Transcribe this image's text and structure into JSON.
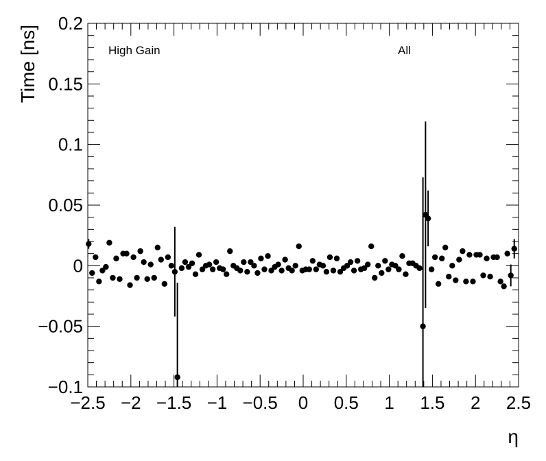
{
  "chart_data": {
    "type": "scatter",
    "xlabel": "η",
    "ylabel": "Time [ns]",
    "xlim": [
      -2.5,
      2.5
    ],
    "ylim": [
      -0.1,
      0.2
    ],
    "xticks": [
      -2.5,
      -2,
      -1.5,
      -1,
      -0.5,
      0,
      0.5,
      1,
      1.5,
      2,
      2.5
    ],
    "xtick_labels": [
      "−2.5",
      "−2",
      "−1.5",
      "−1",
      "−0.5",
      "0",
      "0.5",
      "1",
      "1.5",
      "2",
      "2.5"
    ],
    "yticks": [
      -0.1,
      -0.05,
      0,
      0.05,
      0.1,
      0.15,
      0.2
    ],
    "ytick_labels": [
      "−0.1",
      "−0.05",
      "0",
      "0.05",
      "0.1",
      "0.15",
      "0.2"
    ],
    "annotations": [
      "High Gain",
      "All"
    ],
    "grid": false,
    "marker_color": "#000000",
    "points": [
      {
        "x": -2.49,
        "y": 0.018,
        "err": 0.004
      },
      {
        "x": -2.45,
        "y": -0.006
      },
      {
        "x": -2.41,
        "y": 0.007
      },
      {
        "x": -2.37,
        "y": -0.013
      },
      {
        "x": -2.33,
        "y": -0.004
      },
      {
        "x": -2.29,
        "y": -0.001
      },
      {
        "x": -2.25,
        "y": 0.019
      },
      {
        "x": -2.21,
        "y": -0.01
      },
      {
        "x": -2.17,
        "y": 0.006
      },
      {
        "x": -2.13,
        "y": -0.011
      },
      {
        "x": -2.09,
        "y": 0.01
      },
      {
        "x": -2.05,
        "y": 0.01
      },
      {
        "x": -2.01,
        "y": -0.016
      },
      {
        "x": -1.97,
        "y": 0.007
      },
      {
        "x": -1.93,
        "y": -0.01
      },
      {
        "x": -1.89,
        "y": 0.012
      },
      {
        "x": -1.85,
        "y": 0.003
      },
      {
        "x": -1.81,
        "y": -0.011
      },
      {
        "x": -1.77,
        "y": 0.001
      },
      {
        "x": -1.73,
        "y": -0.01
      },
      {
        "x": -1.69,
        "y": 0.015
      },
      {
        "x": -1.65,
        "y": 0.005
      },
      {
        "x": -1.61,
        "y": -0.015
      },
      {
        "x": -1.57,
        "y": 0.007
      },
      {
        "x": -1.53,
        "y": 0.0
      },
      {
        "x": -1.49,
        "y": -0.005,
        "err": 0.037
      },
      {
        "x": -1.46,
        "y": -0.092,
        "err": 0.078
      },
      {
        "x": -1.41,
        "y": -0.002
      },
      {
        "x": -1.37,
        "y": 0.003
      },
      {
        "x": -1.33,
        "y": -0.001
      },
      {
        "x": -1.29,
        "y": 0.002
      },
      {
        "x": -1.25,
        "y": -0.007
      },
      {
        "x": -1.21,
        "y": 0.009
      },
      {
        "x": -1.17,
        "y": -0.003
      },
      {
        "x": -1.13,
        "y": 0.0
      },
      {
        "x": -1.09,
        "y": 0.001
      },
      {
        "x": -1.05,
        "y": -0.003
      },
      {
        "x": -1.01,
        "y": 0.003
      },
      {
        "x": -0.97,
        "y": -0.002
      },
      {
        "x": -0.93,
        "y": -0.003
      },
      {
        "x": -0.89,
        "y": -0.007
      },
      {
        "x": -0.85,
        "y": 0.012
      },
      {
        "x": -0.81,
        "y": 0.0
      },
      {
        "x": -0.77,
        "y": -0.002
      },
      {
        "x": -0.73,
        "y": -0.004
      },
      {
        "x": -0.69,
        "y": 0.003
      },
      {
        "x": -0.65,
        "y": -0.005
      },
      {
        "x": -0.61,
        "y": 0.003
      },
      {
        "x": -0.57,
        "y": 0.0
      },
      {
        "x": -0.53,
        "y": -0.006
      },
      {
        "x": -0.49,
        "y": 0.006
      },
      {
        "x": -0.45,
        "y": -0.003
      },
      {
        "x": -0.41,
        "y": 0.008
      },
      {
        "x": -0.37,
        "y": -0.004
      },
      {
        "x": -0.33,
        "y": -0.001
      },
      {
        "x": -0.29,
        "y": 0.001
      },
      {
        "x": -0.25,
        "y": -0.004
      },
      {
        "x": -0.21,
        "y": 0.005
      },
      {
        "x": -0.17,
        "y": -0.002
      },
      {
        "x": -0.13,
        "y": -0.004
      },
      {
        "x": -0.09,
        "y": 0.0
      },
      {
        "x": -0.05,
        "y": 0.016
      },
      {
        "x": -0.01,
        "y": -0.004
      },
      {
        "x": 0.03,
        "y": -0.003
      },
      {
        "x": 0.07,
        "y": -0.003
      },
      {
        "x": 0.11,
        "y": 0.004
      },
      {
        "x": 0.15,
        "y": -0.003
      },
      {
        "x": 0.19,
        "y": 0.001
      },
      {
        "x": 0.23,
        "y": 0.0
      },
      {
        "x": 0.27,
        "y": -0.005
      },
      {
        "x": 0.31,
        "y": 0.007
      },
      {
        "x": 0.35,
        "y": -0.004
      },
      {
        "x": 0.39,
        "y": 0.006
      },
      {
        "x": 0.43,
        "y": -0.005
      },
      {
        "x": 0.47,
        "y": -0.002
      },
      {
        "x": 0.51,
        "y": 0.0
      },
      {
        "x": 0.55,
        "y": 0.003
      },
      {
        "x": 0.59,
        "y": -0.004
      },
      {
        "x": 0.63,
        "y": 0.004
      },
      {
        "x": 0.67,
        "y": -0.003
      },
      {
        "x": 0.71,
        "y": -0.002
      },
      {
        "x": 0.75,
        "y": 0.001
      },
      {
        "x": 0.79,
        "y": 0.016
      },
      {
        "x": 0.83,
        "y": -0.01
      },
      {
        "x": 0.87,
        "y": 0.0
      },
      {
        "x": 0.91,
        "y": -0.006
      },
      {
        "x": 0.95,
        "y": 0.004
      },
      {
        "x": 0.99,
        "y": -0.003
      },
      {
        "x": 1.03,
        "y": 0.001
      },
      {
        "x": 1.07,
        "y": 0.0
      },
      {
        "x": 1.11,
        "y": -0.003
      },
      {
        "x": 1.15,
        "y": 0.008
      },
      {
        "x": 1.19,
        "y": -0.007
      },
      {
        "x": 1.23,
        "y": 0.002
      },
      {
        "x": 1.27,
        "y": 0.002
      },
      {
        "x": 1.31,
        "y": 0.0
      },
      {
        "x": 1.35,
        "y": -0.002
      },
      {
        "x": 1.39,
        "y": -0.05,
        "err": 0.123
      },
      {
        "x": 1.42,
        "y": 0.042,
        "err": 0.077
      },
      {
        "x": 1.45,
        "y": 0.039,
        "err": 0.023
      },
      {
        "x": 1.49,
        "y": -0.003
      },
      {
        "x": 1.53,
        "y": 0.007
      },
      {
        "x": 1.57,
        "y": -0.015
      },
      {
        "x": 1.61,
        "y": 0.006
      },
      {
        "x": 1.65,
        "y": 0.015
      },
      {
        "x": 1.69,
        "y": -0.009
      },
      {
        "x": 1.73,
        "y": 0.0
      },
      {
        "x": 1.77,
        "y": -0.012
      },
      {
        "x": 1.81,
        "y": 0.005
      },
      {
        "x": 1.85,
        "y": 0.012
      },
      {
        "x": 1.89,
        "y": -0.013
      },
      {
        "x": 1.93,
        "y": 0.009
      },
      {
        "x": 1.97,
        "y": -0.013
      },
      {
        "x": 2.01,
        "y": 0.009
      },
      {
        "x": 2.05,
        "y": 0.009
      },
      {
        "x": 2.09,
        "y": -0.008
      },
      {
        "x": 2.13,
        "y": 0.006
      },
      {
        "x": 2.17,
        "y": -0.009
      },
      {
        "x": 2.21,
        "y": 0.007
      },
      {
        "x": 2.25,
        "y": 0.007
      },
      {
        "x": 2.29,
        "y": -0.013
      },
      {
        "x": 2.33,
        "y": -0.017
      },
      {
        "x": 2.37,
        "y": 0.01
      },
      {
        "x": 2.41,
        "y": -0.008,
        "err": 0.009
      },
      {
        "x": 2.45,
        "y": 0.014,
        "err": 0.008
      }
    ]
  }
}
